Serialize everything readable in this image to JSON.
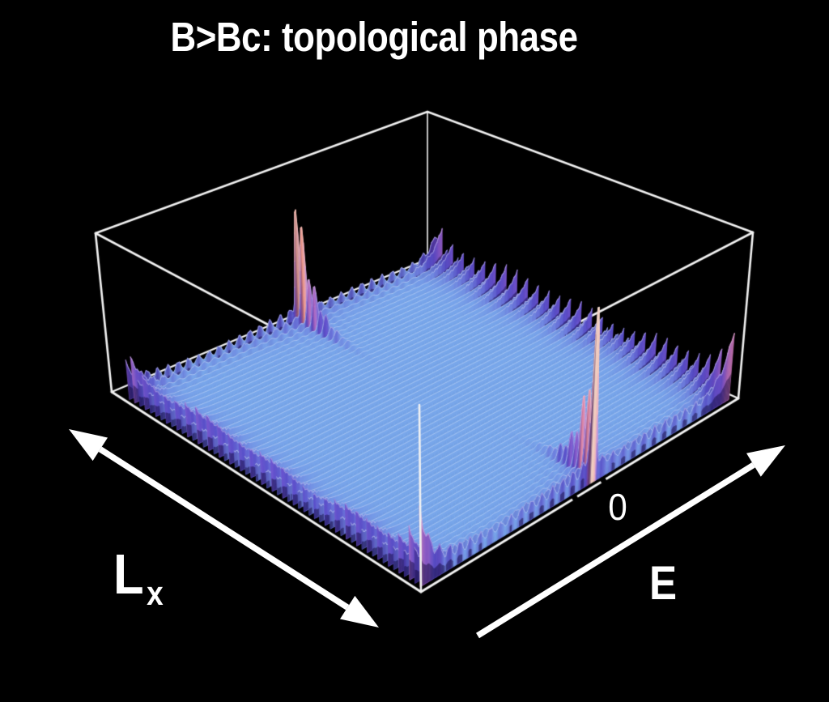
{
  "title": "B>Bc: topological phase",
  "chart_data": {
    "type": "area",
    "subtype": "3d-ridgeline-surface (waterfall of wavefunction weight slices vs energy E, stacked along position x)",
    "title": "B>Bc: topological phase",
    "xlabel": "Lx",
    "ylabel": "E",
    "zlabel": "",
    "x_axis": {
      "label_main": "L",
      "label_sub": "x",
      "arrow": "double-headed"
    },
    "e_axis": {
      "label": "E",
      "arrow": "single-headed",
      "ticks": [
        {
          "label": "0",
          "position_v": 0.555
        }
      ]
    },
    "z_axis": {
      "range": [
        0,
        1
      ],
      "meaning": "normalized amplitude"
    },
    "features": {
      "bulk_plateau_height": 0.048,
      "zero_energy_edge_modes": [
        {
          "x": "0 (front edge)",
          "E": 0,
          "peak_height": 0.97
        },
        {
          "x": "Lx (back edge)",
          "E": 0,
          "peak_height": 0.93
        }
      ],
      "oscillatory_edge_bands": "violet comb-like bands along all four boundaries with pink corner peaks"
    },
    "surface_model": {
      "u_inset_front": 0.015,
      "u_inset_back": 0.955,
      "v_inset_lo": 0.012,
      "v_inset_hi": 0.985,
      "n_slices": 56,
      "points_per_slice": 300,
      "plateau": 0.048,
      "edge_band_E": {
        "sigma_v": 0.035,
        "tooth_period_u": 0.036,
        "base_amp": 0.05,
        "osc_amp": 0.115,
        "corner_boost": 1.25,
        "corner_sigma_u": 0.045
      },
      "edge_band_x": {
        "amp": 0.05,
        "period_v": 0.033,
        "sigma_u": 0.022
      },
      "zero_mode": {
        "E_position_v": 0.555,
        "height_front": 0.97,
        "height_back": 0.93,
        "localization_xi_u": 0.042,
        "width_v": 0.0075,
        "tail_amp": 0.05,
        "tail_sigma_v": 0.05,
        "skirt_amp": 0.025,
        "skirt_period_v": 0.03,
        "skirt_sigma_v": 0.13
      }
    }
  },
  "colors": {
    "background": "#000000",
    "box_line": "#f2f2f2",
    "text": "#ffffff",
    "flat_surface": "#7db9f1",
    "shadow_mix": "#1d0e5e",
    "stroke_flat": "rgba(255,255,255,0.26)",
    "under_shadow": "rgba(16,8,56,0.5)",
    "colormap": [
      [
        0.0,
        "#7db9f1"
      ],
      [
        0.045,
        "#7aabed"
      ],
      [
        0.085,
        "#6f7fdf"
      ],
      [
        0.13,
        "#5a50cb"
      ],
      [
        0.19,
        "#6f53d0"
      ],
      [
        0.27,
        "#9c63cd"
      ],
      [
        0.37,
        "#cc78b8"
      ],
      [
        0.48,
        "#e689a0"
      ],
      [
        0.6,
        "#ef9086"
      ],
      [
        0.75,
        "#f4a892"
      ],
      [
        0.9,
        "#f8c2a8"
      ],
      [
        1.0,
        "#fbd8c8"
      ]
    ]
  }
}
